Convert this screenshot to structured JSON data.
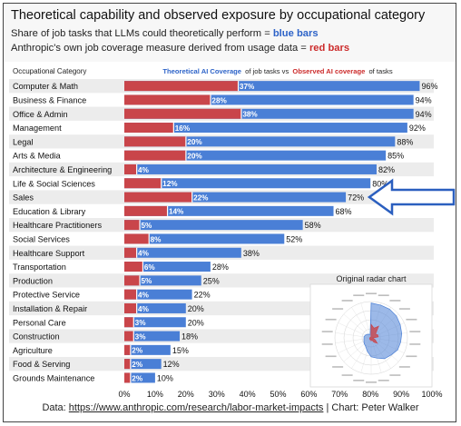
{
  "header": {
    "title": "Theoretical capability and observed exposure by occupational category",
    "subtitle_1_prefix": "Share of job tasks that LLMs could theoretically perform = ",
    "subtitle_1_keyword": "blue bars",
    "subtitle_2_prefix": "Anthropic's own job coverage measure derived from usage data = ",
    "subtitle_2_keyword": "red bars"
  },
  "colors": {
    "blue": "#4a7fd6",
    "red": "#c9454a",
    "row_band": "#ececec",
    "arrow": "#2b5fbf",
    "text_blue": "#2d63c8",
    "text_red": "#cc2b2b"
  },
  "chart_data": {
    "type": "bar",
    "orientation": "horizontal",
    "category_header": "Occupational Category",
    "legend": {
      "blue_label": "Theoretical AI Coverage",
      "middle_label": "of job tasks vs",
      "red_label": "Observed AI coverage",
      "tail_label": "of tasks"
    },
    "categories": [
      "Computer & Math",
      "Business & Finance",
      "Office & Admin",
      "Management",
      "Legal",
      "Arts & Media",
      "Architecture & Engineering",
      "Life & Social Sciences",
      "Sales",
      "Education & Library",
      "Healthcare Practitioners",
      "Social Services",
      "Healthcare Support",
      "Transportation",
      "Production",
      "Protective Service",
      "Installation & Repair",
      "Personal Care",
      "Construction",
      "Agriculture",
      "Food & Serving",
      "Grounds Maintenance"
    ],
    "series": [
      {
        "name": "Theoretical AI Coverage",
        "values": [
          96,
          94,
          94,
          92,
          88,
          85,
          82,
          80,
          72,
          68,
          58,
          52,
          38,
          28,
          25,
          22,
          20,
          20,
          18,
          15,
          12,
          10
        ],
        "labels": [
          "96%",
          "94%",
          "94%",
          "92%",
          "88%",
          "85%",
          "82%",
          "80%",
          "72%",
          "68%",
          "58%",
          "52%",
          "38%",
          "28%",
          "25%",
          "22%",
          "20%",
          "20%",
          "18%",
          "15%",
          "12%",
          "10%"
        ]
      },
      {
        "name": "Observed AI coverage",
        "values": [
          37,
          28,
          38,
          16,
          20,
          20,
          4,
          12,
          22,
          14,
          5,
          8,
          4,
          6,
          5,
          4,
          4,
          3,
          3,
          2,
          2,
          2
        ],
        "labels": [
          "37%",
          "28%",
          "38%",
          "16%",
          "20%",
          "20%",
          "4%",
          "12%",
          "22%",
          "14%",
          "5%",
          "8%",
          "4%",
          "6%",
          "5%",
          "4%",
          "4%",
          "3%",
          "3%",
          "2%",
          "2%",
          "2%"
        ]
      }
    ],
    "xlim": [
      0,
      100
    ],
    "x_ticks": [
      "0%",
      "10%",
      "20%",
      "30%",
      "40%",
      "50%",
      "60%",
      "70%",
      "80%",
      "90%",
      "100%"
    ],
    "annotation": "arrow pointing to Sales row"
  },
  "inset": {
    "title": "Original radar chart"
  },
  "footer": {
    "prefix": "Data: ",
    "link": "https://www.anthropic.com/research/labor-market-impacts",
    "suffix": " | Chart: Peter Walker"
  }
}
